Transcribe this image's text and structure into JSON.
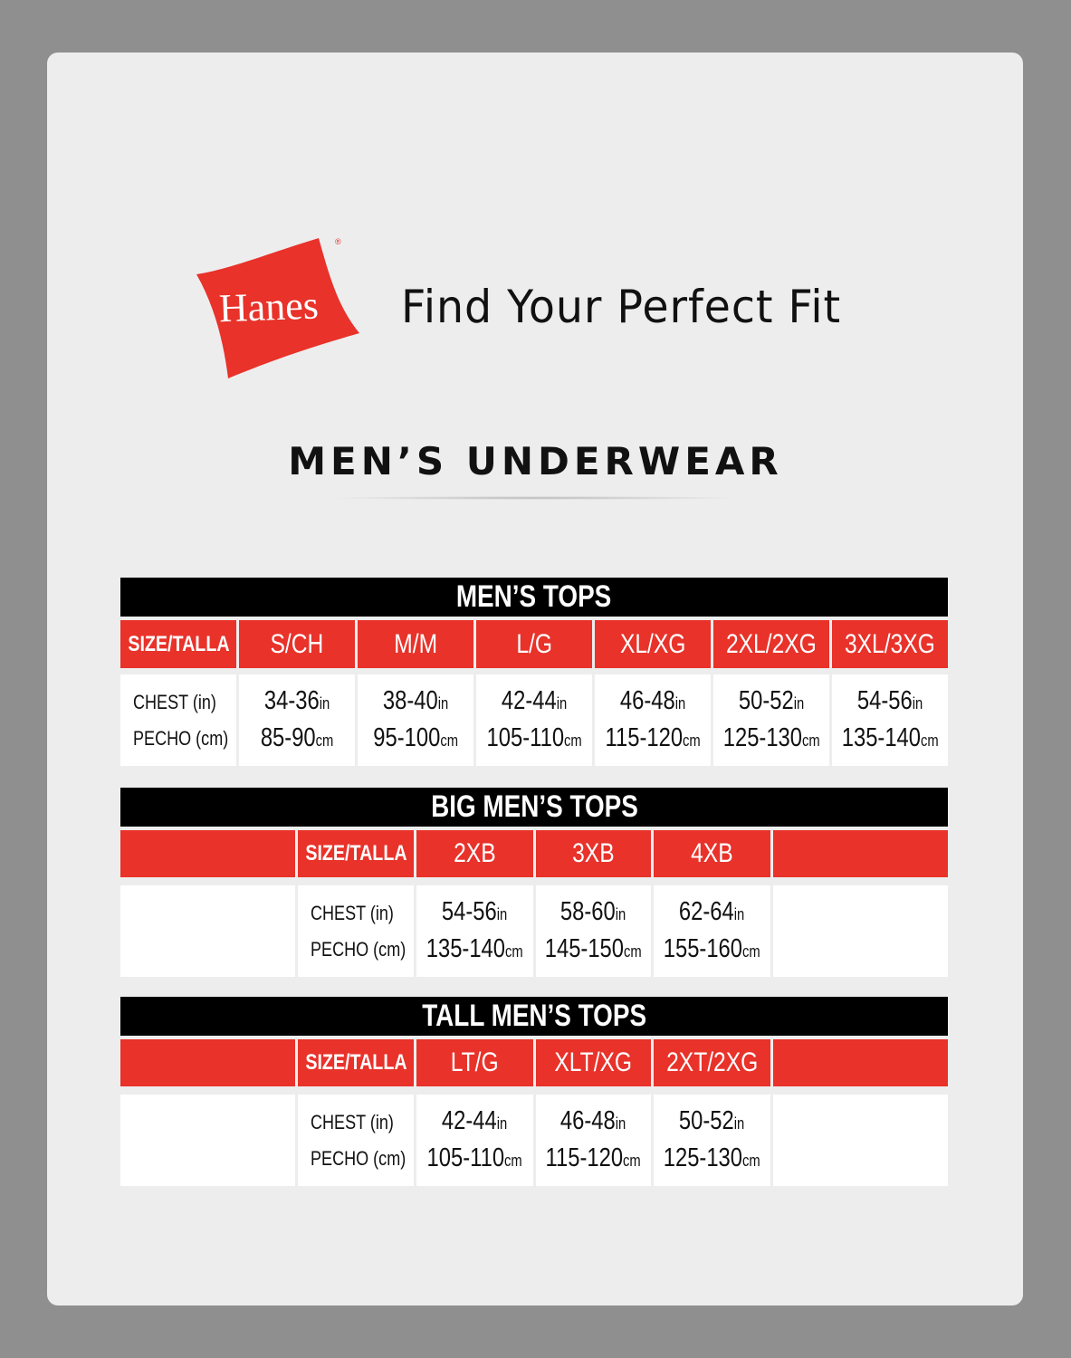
{
  "brand": {
    "name": "Hanes",
    "registered": "®",
    "color": "#e8322a"
  },
  "tagline": "Find Your Perfect Fit",
  "title": "MEN’S UNDERWEAR",
  "colors": {
    "header_red": "#e8322a",
    "header_black": "#000000",
    "cell_white": "#ffffff"
  },
  "tables": [
    {
      "title": "MEN’S TOPS",
      "size_label": "SIZE/TALLA",
      "chest_label": "CHEST (in)",
      "pecho_label": "PECHO (cm)",
      "sizes": [
        {
          "size": "S/CH",
          "in": "34-36",
          "cm": "85-90"
        },
        {
          "size": "M/M",
          "in": "38-40",
          "cm": "95-100"
        },
        {
          "size": "L/G",
          "in": "42-44",
          "cm": "105-110"
        },
        {
          "size": "XL/XG",
          "in": "46-48",
          "cm": "115-120"
        },
        {
          "size": "2XL/2XG",
          "in": "50-52",
          "cm": "125-130"
        },
        {
          "size": "3XL/3XG",
          "in": "54-56",
          "cm": "135-140"
        }
      ]
    },
    {
      "title": "BIG MEN’S TOPS",
      "size_label": "SIZE/TALLA",
      "chest_label": "CHEST (in)",
      "pecho_label": "PECHO (cm)",
      "sizes": [
        {
          "size": "2XB",
          "in": "54-56",
          "cm": "135-140"
        },
        {
          "size": "3XB",
          "in": "58-60",
          "cm": "145-150"
        },
        {
          "size": "4XB",
          "in": "62-64",
          "cm": "155-160"
        }
      ]
    },
    {
      "title": "TALL MEN’S TOPS",
      "size_label": "SIZE/TALLA",
      "chest_label": "CHEST (in)",
      "pecho_label": "PECHO (cm)",
      "sizes": [
        {
          "size": "LT/G",
          "in": "42-44",
          "cm": "105-110"
        },
        {
          "size": "XLT/XG",
          "in": "46-48",
          "cm": "115-120"
        },
        {
          "size": "2XT/2XG",
          "in": "50-52",
          "cm": "125-130"
        }
      ]
    }
  ],
  "units": {
    "in": "in",
    "cm": "cm"
  }
}
